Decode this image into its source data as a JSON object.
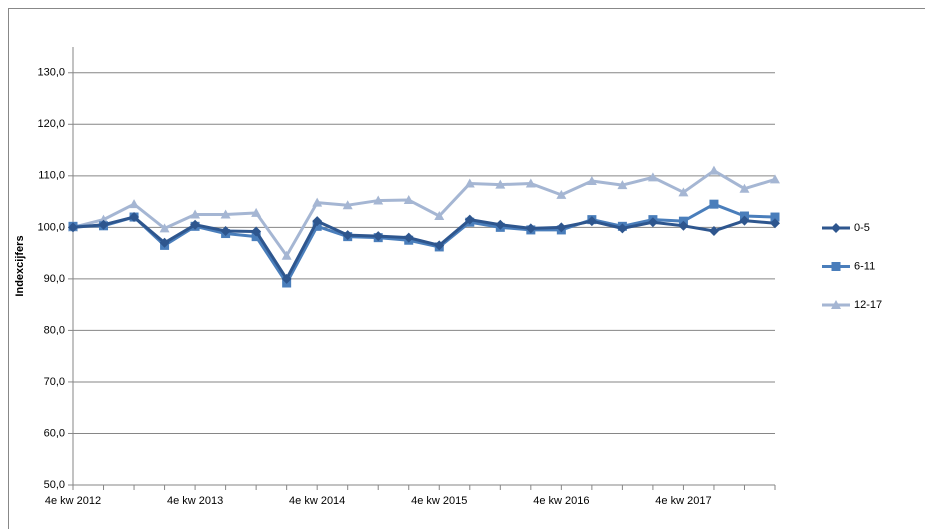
{
  "chart_data": {
    "type": "line",
    "y_label": "Indexcijfers",
    "categories": [
      "4e kw 2012",
      null,
      null,
      null,
      "4e kw 2013",
      null,
      null,
      null,
      "4e kw 2014",
      null,
      null,
      null,
      "4e kw 2015",
      null,
      null,
      null,
      "4e kw 2016",
      null,
      null,
      null,
      "4e kw 2017",
      null,
      null,
      null
    ],
    "series": [
      {
        "name": "0-5",
        "color": "#2e568e",
        "marker": "diamond",
        "values": [
          100,
          100.5,
          102,
          97,
          100.5,
          99.3,
          99.2,
          90,
          101.2,
          98.5,
          98.3,
          98,
          96.5,
          101.5,
          100.5,
          99.8,
          100,
          101.2,
          99.8,
          101,
          100.3,
          99.3,
          101.3,
          100.8
        ]
      },
      {
        "name": "6-11",
        "color": "#4a7ebb",
        "marker": "square",
        "values": [
          100.2,
          100.3,
          102,
          96.5,
          100.2,
          98.8,
          98.2,
          89.2,
          100.2,
          98.2,
          98,
          97.5,
          96.2,
          101,
          100,
          99.5,
          99.5,
          101.5,
          100.2,
          101.5,
          101.2,
          104.5,
          102.2,
          102
        ]
      },
      {
        "name": "12-17",
        "color": "#a5b6d3",
        "marker": "triangle",
        "values": [
          100,
          101.5,
          104.5,
          99.8,
          102.5,
          102.5,
          102.8,
          94.5,
          104.8,
          104.3,
          105.2,
          105.3,
          102.2,
          108.5,
          108.3,
          108.5,
          106.3,
          109,
          108.2,
          109.7,
          106.8,
          111,
          107.5,
          109.3
        ]
      }
    ],
    "ylim": [
      50,
      135
    ],
    "yticks": [
      {
        "value": 50,
        "label": "50,0"
      },
      {
        "value": 60,
        "label": "60,0"
      },
      {
        "value": 70,
        "label": "70,0"
      },
      {
        "value": 80,
        "label": "80,0"
      },
      {
        "value": 90,
        "label": "90,0"
      },
      {
        "value": 100,
        "label": "100,0"
      },
      {
        "value": 110,
        "label": "110,0"
      },
      {
        "value": 120,
        "label": "120,0"
      },
      {
        "value": 130,
        "label": "130,0"
      }
    ],
    "grid": true,
    "legend": "right"
  }
}
